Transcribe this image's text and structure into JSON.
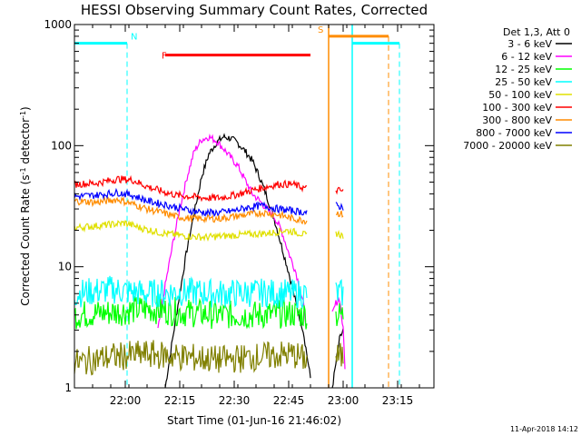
{
  "chart_data": {
    "type": "line",
    "title": "HESSI Observing Summary Count Rates, Corrected",
    "xlabel": "Start Time (01-Jun-16 21:46:02)",
    "ylabel": "Corrected Count Rate (s⁻¹ detector⁻¹)",
    "ylabel_main": "Corrected Count Rate (s",
    "ylabel_sup1": "-1",
    "ylabel_mid": " detector",
    "ylabel_sup2": "-1",
    "ylabel_end": ")",
    "yscale": "log",
    "ylim": [
      1,
      1000
    ],
    "xlim_minutes": [
      0,
      99
    ],
    "x_ticks": [
      {
        "label": "22:00",
        "minutes": 14
      },
      {
        "label": "22:15",
        "minutes": 29
      },
      {
        "label": "22:30",
        "minutes": 44
      },
      {
        "label": "22:45",
        "minutes": 59
      },
      {
        "label": "23:00",
        "minutes": 74
      },
      {
        "label": "23:15",
        "minutes": 89
      }
    ],
    "y_ticks": [
      {
        "label": "1",
        "value": 1
      },
      {
        "label": "10",
        "value": 10
      },
      {
        "label": "100",
        "value": 100
      },
      {
        "label": "1000",
        "value": 1000
      }
    ],
    "legend_header": "Det 1,3, Att 0",
    "series": [
      {
        "name": "3 - 6 keV",
        "color": "#000000",
        "segments": [
          [
            [
              25,
              1
            ],
            [
              27,
              2.5
            ],
            [
              29,
              6
            ],
            [
              31,
              14
            ],
            [
              33,
              28
            ],
            [
              35,
              55
            ],
            [
              37,
              85
            ],
            [
              39,
              105
            ],
            [
              41,
              118
            ],
            [
              43,
              115
            ],
            [
              45,
              105
            ],
            [
              47,
              90
            ],
            [
              49,
              75
            ],
            [
              51,
              55
            ],
            [
              53,
              38
            ],
            [
              55,
              25
            ],
            [
              57,
              15
            ],
            [
              59,
              9
            ],
            [
              61,
              5
            ],
            [
              63,
              3
            ],
            [
              65,
              1.2
            ]
          ],
          [
            [
              71,
              1
            ],
            [
              73,
              2.5
            ],
            [
              74,
              3
            ]
          ]
        ]
      },
      {
        "name": "6 - 12 keV",
        "color": "#ff00ff",
        "segments": [
          [
            [
              23,
              3
            ],
            [
              25,
              7
            ],
            [
              27,
              15
            ],
            [
              29,
              30
            ],
            [
              31,
              55
            ],
            [
              33,
              90
            ],
            [
              35,
              112
            ],
            [
              37,
              118
            ],
            [
              39,
              110
            ],
            [
              41,
              95
            ],
            [
              43,
              80
            ],
            [
              45,
              68
            ],
            [
              47,
              52
            ],
            [
              49,
              40
            ],
            [
              51,
              35
            ],
            [
              53,
              30
            ],
            [
              55,
              26
            ],
            [
              57,
              20
            ],
            [
              59,
              13
            ],
            [
              61,
              9
            ],
            [
              63,
              5
            ],
            [
              64,
              3
            ]
          ],
          [
            [
              71,
              4
            ],
            [
              72,
              5
            ],
            [
              73,
              5.5
            ],
            [
              74,
              3
            ],
            [
              74.5,
              1.5
            ]
          ]
        ]
      },
      {
        "name": "12 - 25 keV",
        "color": "#00ff00",
        "segments": [
          [
            [
              0,
              4
            ],
            [
              10,
              4.2
            ],
            [
              20,
              4.5
            ],
            [
              30,
              4.2
            ],
            [
              40,
              4
            ],
            [
              50,
              4
            ],
            [
              60,
              4.1
            ],
            [
              64,
              4
            ]
          ],
          [
            [
              72,
              4
            ],
            [
              74,
              4
            ]
          ]
        ]
      },
      {
        "name": "25 - 50 keV",
        "color": "#00ffff",
        "segments": [
          [
            [
              0,
              6
            ],
            [
              10,
              6.5
            ],
            [
              20,
              6
            ],
            [
              30,
              6.2
            ],
            [
              40,
              6
            ],
            [
              50,
              6.1
            ],
            [
              60,
              6
            ],
            [
              64,
              6
            ]
          ],
          [
            [
              72,
              6
            ],
            [
              74,
              6
            ]
          ]
        ]
      },
      {
        "name": "50 - 100 keV",
        "color": "#e0e000",
        "segments": [
          [
            [
              0,
              21
            ],
            [
              8,
              22
            ],
            [
              14,
              23
            ],
            [
              18,
              21
            ],
            [
              24,
              19
            ],
            [
              30,
              18
            ],
            [
              36,
              17.5
            ],
            [
              42,
              18
            ],
            [
              48,
              18.5
            ],
            [
              54,
              19
            ],
            [
              58,
              20
            ],
            [
              62,
              19
            ],
            [
              64,
              18
            ]
          ],
          [
            [
              72,
              19
            ],
            [
              74,
              18
            ]
          ]
        ]
      },
      {
        "name": "100 - 300 keV",
        "color": "#ff0000",
        "segments": [
          [
            [
              0,
              48
            ],
            [
              6,
              49
            ],
            [
              12,
              53
            ],
            [
              16,
              52
            ],
            [
              20,
              46
            ],
            [
              24,
              42
            ],
            [
              28,
              39
            ],
            [
              32,
              38
            ],
            [
              36,
              37
            ],
            [
              40,
              37
            ],
            [
              44,
              39
            ],
            [
              48,
              42
            ],
            [
              52,
              45
            ],
            [
              56,
              48
            ],
            [
              60,
              48
            ],
            [
              64,
              44
            ]
          ],
          [
            [
              72,
              43
            ],
            [
              74,
              42
            ]
          ]
        ]
      },
      {
        "name": "300 - 800 keV",
        "color": "#ff8c00",
        "segments": [
          [
            [
              0,
              35
            ],
            [
              6,
              34
            ],
            [
              12,
              36
            ],
            [
              16,
              33
            ],
            [
              20,
              30
            ],
            [
              24,
              28
            ],
            [
              28,
              26
            ],
            [
              32,
              25
            ],
            [
              36,
              25
            ],
            [
              40,
              25
            ],
            [
              44,
              26
            ],
            [
              48,
              27
            ],
            [
              52,
              28
            ],
            [
              56,
              27
            ],
            [
              60,
              25
            ],
            [
              64,
              24
            ]
          ],
          [
            [
              72,
              28
            ],
            [
              74,
              27
            ]
          ]
        ]
      },
      {
        "name": "800 - 7000 keV",
        "color": "#0000ff",
        "segments": [
          [
            [
              0,
              38
            ],
            [
              6,
              39
            ],
            [
              12,
              41
            ],
            [
              16,
              39
            ],
            [
              20,
              35
            ],
            [
              24,
              33
            ],
            [
              28,
              31
            ],
            [
              32,
              29
            ],
            [
              36,
              28
            ],
            [
              40,
              28
            ],
            [
              44,
              29
            ],
            [
              48,
              31
            ],
            [
              52,
              32
            ],
            [
              56,
              30
            ],
            [
              60,
              29
            ],
            [
              64,
              28
            ]
          ],
          [
            [
              72,
              32
            ],
            [
              74,
              31
            ]
          ]
        ]
      },
      {
        "name": "7000 - 20000 keV",
        "color": "#808000",
        "segments": [
          [
            [
              0,
              1.6
            ],
            [
              10,
              1.8
            ],
            [
              20,
              1.9
            ],
            [
              30,
              1.8
            ],
            [
              40,
              1.7
            ],
            [
              50,
              1.8
            ],
            [
              60,
              1.9
            ],
            [
              64,
              1.7
            ]
          ],
          [
            [
              72,
              1.8
            ],
            [
              74,
              1.8
            ]
          ]
        ]
      }
    ],
    "annotations": [
      {
        "label": "N",
        "color": "#00ffff",
        "x_minutes": 14.5,
        "y": 700
      },
      {
        "label": "F",
        "color": "#ff0000",
        "x_minutes": 23,
        "y": 560
      },
      {
        "label": "S",
        "color": "#ff8c00",
        "x_minutes": 70.5,
        "y": 800
      }
    ],
    "intervals": [
      {
        "name": "night",
        "color": "#00ffff",
        "level": 700,
        "ranges": [
          [
            0,
            14.5
          ],
          [
            76.5,
            89.5
          ]
        ],
        "dashed_edges": [
          14.5,
          89.5
        ],
        "solid_edges": [
          76.5
        ]
      },
      {
        "name": "flare",
        "color": "#ff0000",
        "level": 560,
        "ranges": [
          [
            25,
            65
          ]
        ]
      },
      {
        "name": "saa",
        "color": "#ff8c00",
        "level": 800,
        "ranges": [
          [
            70,
            86.5
          ]
        ],
        "solid_edges": [
          70
        ],
        "dashed_edges": [
          86.5
        ]
      }
    ],
    "grid": false,
    "legend_placement": "right"
  },
  "footer": {
    "timestamp": "11-Apr-2018 14:12"
  }
}
